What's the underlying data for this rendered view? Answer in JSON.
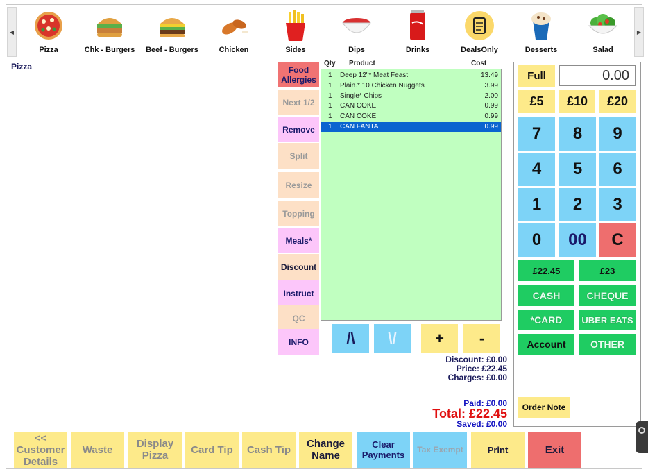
{
  "categories": [
    {
      "label": "Pizza",
      "icon": "pizza-icon"
    },
    {
      "label": "Chk - Burgers",
      "icon": "chicken-burger-icon"
    },
    {
      "label": "Beef - Burgers",
      "icon": "beef-burger-icon"
    },
    {
      "label": "Chicken",
      "icon": "chicken-wings-icon"
    },
    {
      "label": "Sides",
      "icon": "fries-icon"
    },
    {
      "label": "Dips",
      "icon": "dip-bowl-icon"
    },
    {
      "label": "Drinks",
      "icon": "cola-can-icon"
    },
    {
      "label": "DealsOnly",
      "icon": "deals-icon"
    },
    {
      "label": "Desserts",
      "icon": "ice-cream-icon"
    },
    {
      "label": "Salad",
      "icon": "salad-icon"
    }
  ],
  "left_panel": {
    "title": "Pizza"
  },
  "functions": {
    "food_allergies": "Food Allergies",
    "next_half": "Next 1/2",
    "remove": "Remove",
    "split": "Split",
    "resize": "Resize",
    "topping": "Topping",
    "meals": "Meals*",
    "discount": "Discount",
    "instruct": "Instruct",
    "qc": "QC",
    "info": "INFO"
  },
  "order": {
    "headers": {
      "qty": "Qty",
      "product": "Product",
      "cost": "Cost"
    },
    "rows": [
      {
        "qty": "1",
        "product": "Deep 12\"* Meat Feast",
        "cost": "13.49"
      },
      {
        "qty": "1",
        "product": "Plain.* 10 Chicken Nuggets",
        "cost": "3.99"
      },
      {
        "qty": "1",
        "product": "Single* Chips",
        "cost": "2.00"
      },
      {
        "qty": "1",
        "product": "CAN COKE",
        "cost": "0.99"
      },
      {
        "qty": "1",
        "product": "CAN COKE",
        "cost": "0.99"
      },
      {
        "qty": "1",
        "product": "CAN FANTA",
        "cost": "0.99"
      }
    ]
  },
  "nav": {
    "up": "/\\",
    "down": "\\/",
    "plus": "+",
    "minus": "-"
  },
  "totals": {
    "discount": "Discount: £0.00",
    "price": "Price:  £22.45",
    "charges": "Charges:  £0.00",
    "paid": "Paid:  £0.00",
    "total": "Total:  £22.45",
    "saved": "Saved:  £0.00"
  },
  "keypad": {
    "full": "Full",
    "amount": "0.00",
    "five": "£5",
    "ten": "£10",
    "twenty": "£20",
    "n7": "7",
    "n8": "8",
    "n9": "9",
    "n4": "4",
    "n5": "5",
    "n6": "6",
    "n1": "1",
    "n2": "2",
    "n3": "3",
    "n0": "0",
    "n00": "00",
    "clear": "C",
    "quick1": "£22.45",
    "quick2": "£23",
    "cash": "CASH",
    "cheque": "CHEQUE",
    "card": "*CARD",
    "uber": "UBER EATS",
    "account": "Account",
    "other": "OTHER",
    "order_note": "Order Note"
  },
  "bottom": {
    "customer_details": "<< Customer Details",
    "waste": "Waste",
    "display_pizza": "Display Pizza",
    "card_tip": "Card Tip",
    "cash_tip": "Cash Tip",
    "change_name": "Change Name",
    "clear_payments": "Clear Payments",
    "tax_exempt": "Tax Exempt",
    "print": "Print",
    "exit": "Exit"
  },
  "colors": {
    "accent_red": "#f07373",
    "selection": "#0a64d0",
    "grid_bg": "#c0ffc0",
    "total_red": "#e01010",
    "label_blue": "#1010c0"
  }
}
